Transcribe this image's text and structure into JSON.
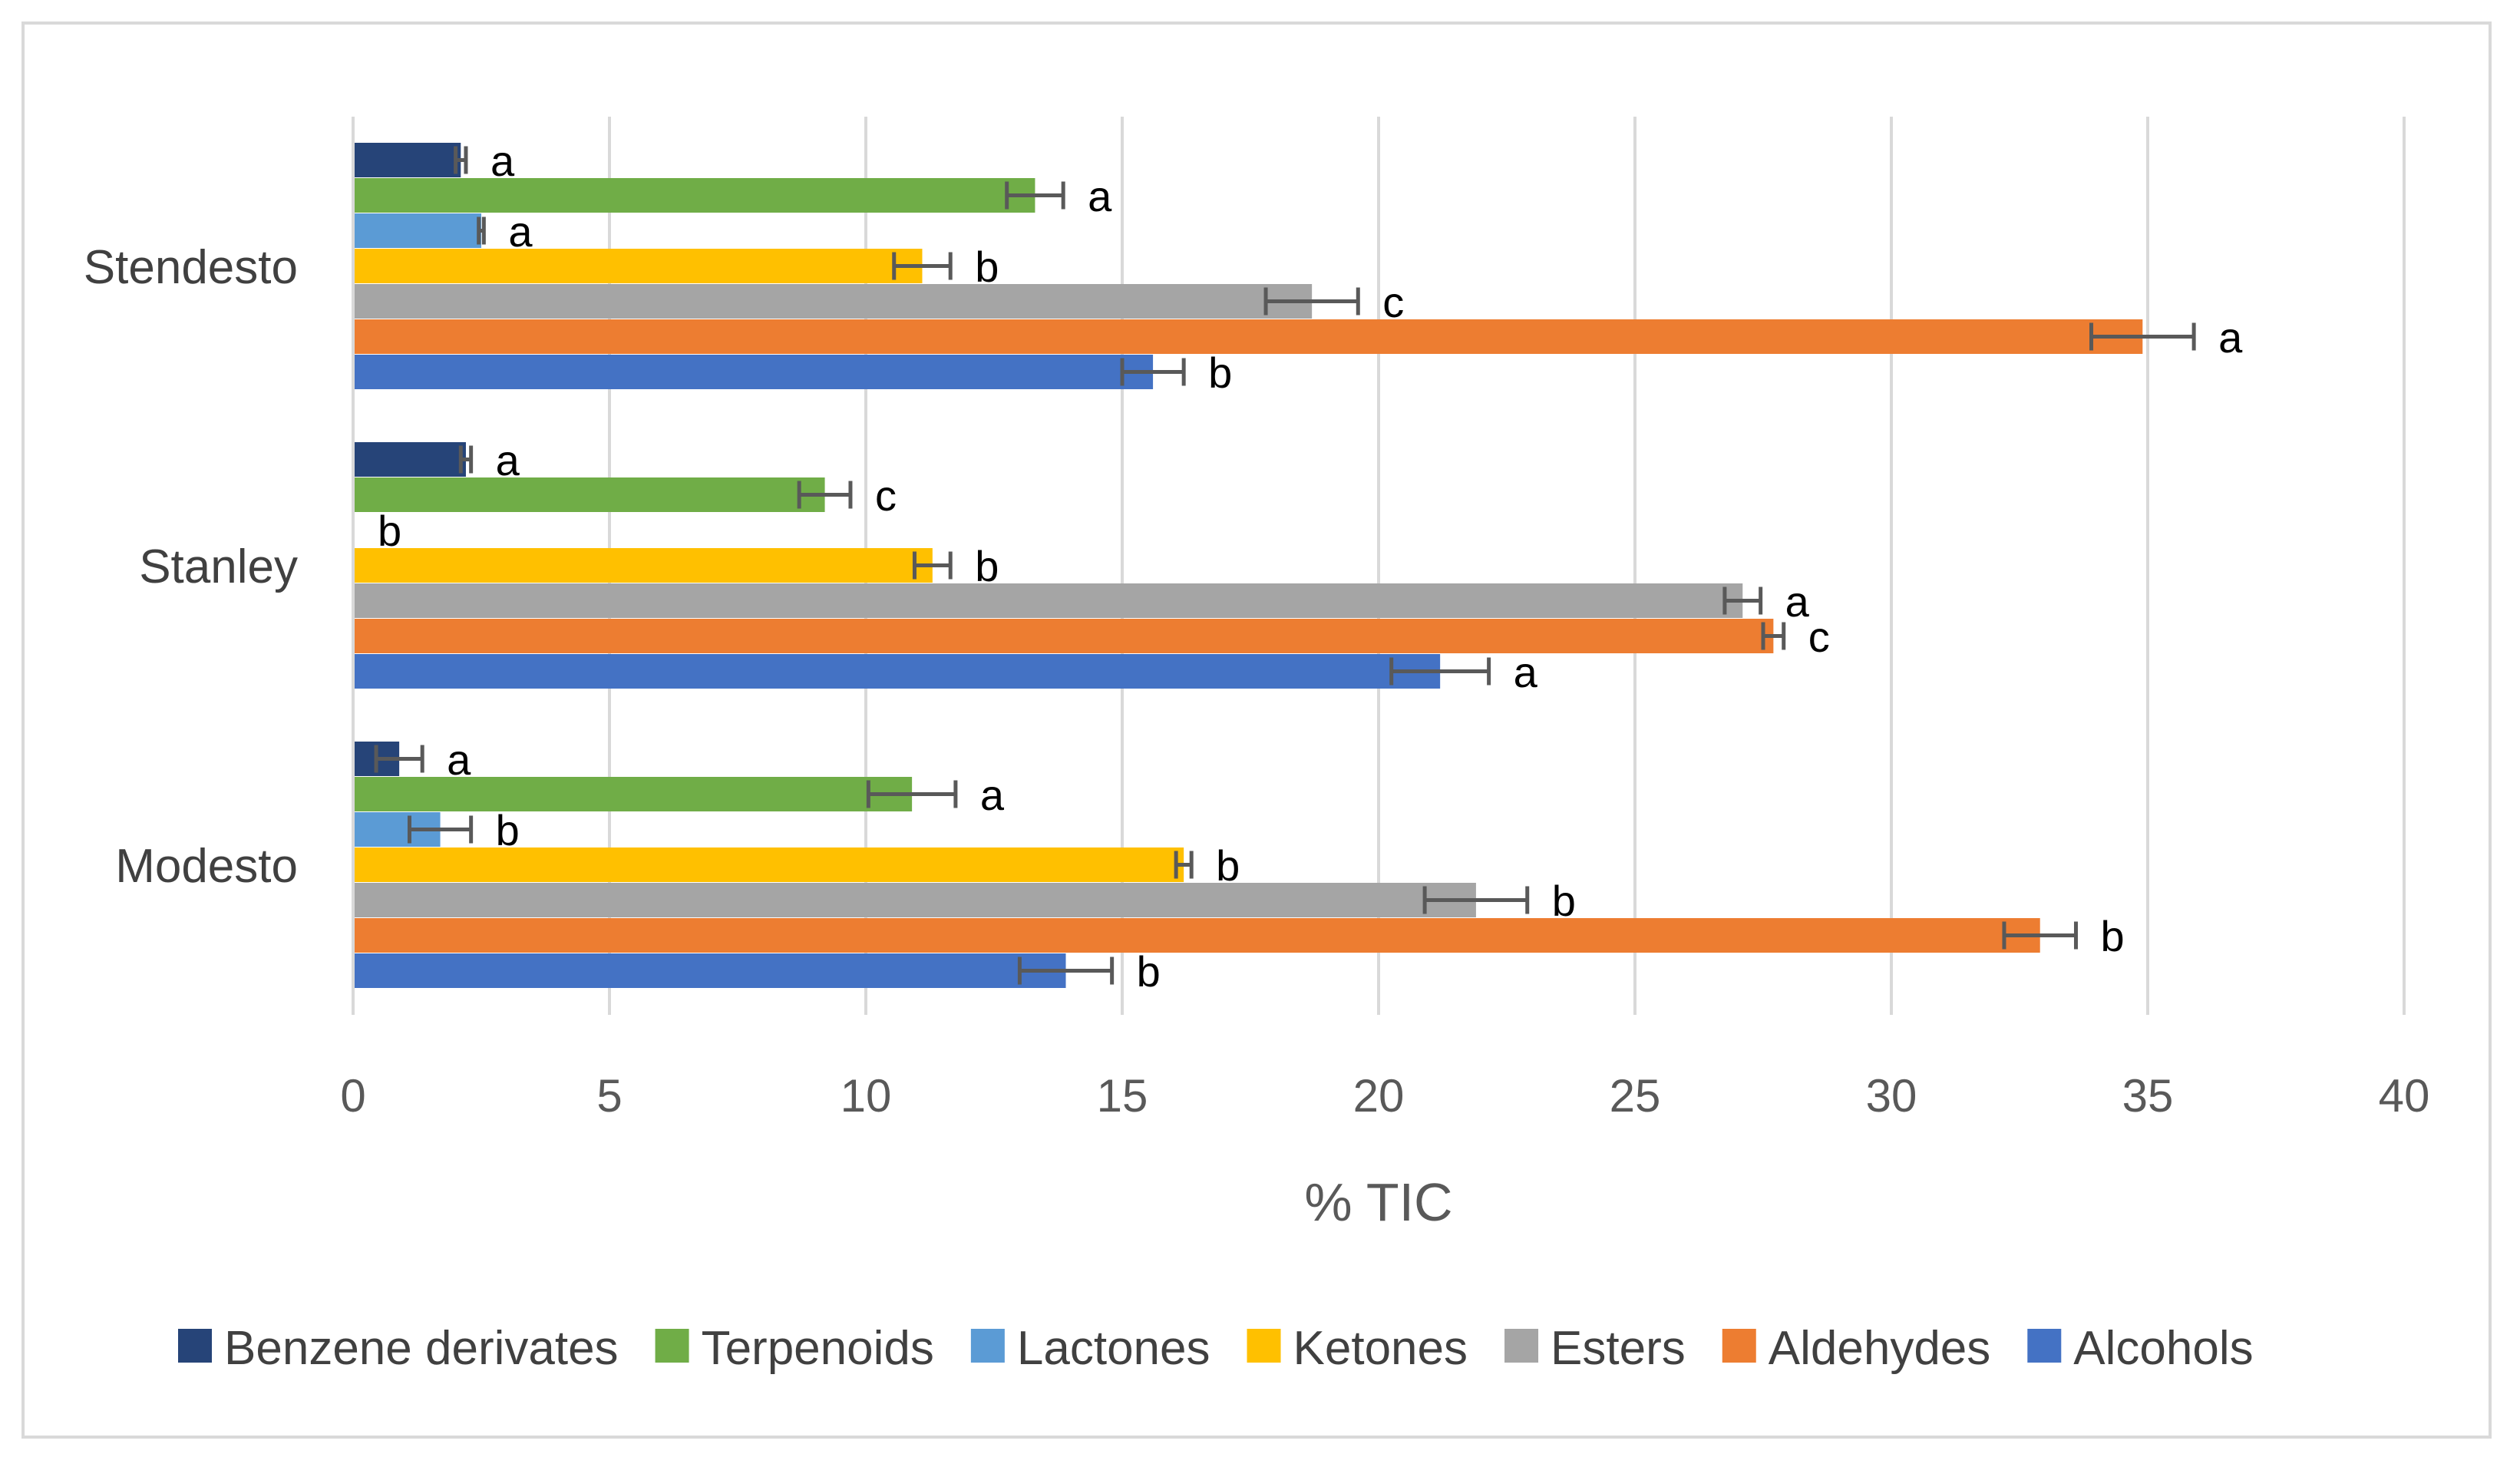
{
  "chart_data": {
    "type": "bar",
    "orientation": "horizontal",
    "title": "",
    "xlabel": "% TIC",
    "ylabel": "",
    "xlim": [
      0,
      40
    ],
    "xticks": [
      0,
      5,
      10,
      15,
      20,
      25,
      30,
      35,
      40
    ],
    "grid": true,
    "legend_position": "bottom",
    "categories": [
      "Stendesto",
      "Stanley",
      "Modesto"
    ],
    "series": [
      {
        "name": "Benzene derivates",
        "color": "#264478",
        "values": [
          2.1,
          2.2,
          0.9
        ],
        "errors": [
          0.1,
          0.1,
          0.45
        ],
        "letters": [
          "a",
          "a",
          "a"
        ]
      },
      {
        "name": "Terpenoids",
        "color": "#70ad47",
        "values": [
          13.3,
          9.2,
          10.9
        ],
        "errors": [
          0.55,
          0.5,
          0.85
        ],
        "letters": [
          "a",
          "c",
          "a"
        ]
      },
      {
        "name": "Lactones",
        "color": "#5b9bd5",
        "values": [
          2.5,
          0.0,
          1.7
        ],
        "errors": [
          0.05,
          0.0,
          0.6
        ],
        "letters": [
          "a",
          "b",
          "b"
        ]
      },
      {
        "name": "Ketones",
        "color": "#ffc000",
        "values": [
          11.1,
          11.3,
          16.2
        ],
        "errors": [
          0.55,
          0.35,
          0.15
        ],
        "letters": [
          "b",
          "b",
          "b"
        ]
      },
      {
        "name": "Esters",
        "color": "#a5a5a5",
        "values": [
          18.7,
          27.1,
          21.9
        ],
        "errors": [
          0.9,
          0.35,
          1.0
        ],
        "letters": [
          "c",
          "a",
          "b"
        ]
      },
      {
        "name": "Aldehydes",
        "color": "#ed7d31",
        "values": [
          34.9,
          27.7,
          32.9
        ],
        "errors": [
          1.0,
          0.2,
          0.7
        ],
        "letters": [
          "a",
          "c",
          "b"
        ]
      },
      {
        "name": "Alcohols",
        "color": "#4472c4",
        "values": [
          15.6,
          21.2,
          13.9
        ],
        "errors": [
          0.6,
          0.95,
          0.9
        ],
        "letters": [
          "b",
          "a",
          "b"
        ]
      }
    ]
  }
}
